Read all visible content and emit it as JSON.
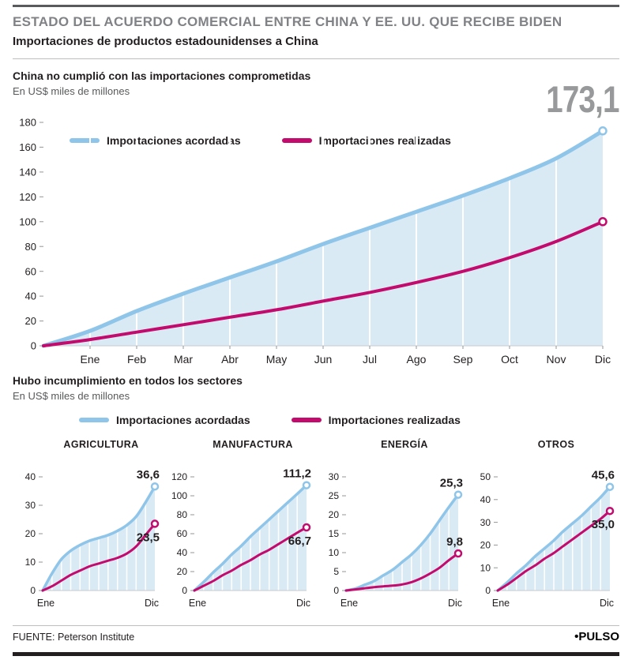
{
  "header": {
    "kicker": "ESTADO DEL ACUERDO COMERCIAL ENTRE CHINA Y EE. UU. QUE RECIBE BIDEN",
    "title": "Importaciones de productos estadounidenses a China"
  },
  "section1": {
    "title": "China no cumplió con las importaciones comprometidas",
    "subtitle": "En US$ miles de millones",
    "big_value_agreed": "173,1",
    "big_value_realized": "100"
  },
  "section2": {
    "title": "Hubo incumplimiento en todos los sectores",
    "subtitle": "En US$ miles de millones"
  },
  "legend": {
    "agreed": "Importaciones acordadas",
    "realized": "Importaciones realizadas"
  },
  "footer": {
    "source": "FUENTE: Peterson Institute",
    "brand": "•PULSO"
  },
  "colors": {
    "agreed_line": "#8FC5E9",
    "realized_line": "#C30B6E",
    "area_fill": "#D9EAF5",
    "big_number": "#97999B",
    "kicker": "#808285",
    "text_dark": "#221E1F"
  },
  "chart_data": [
    {
      "type": "line",
      "title": "China no cumplió con las importaciones comprometidas",
      "unit": "En US$ miles de millones",
      "x_labels": [
        "Ene",
        "Feb",
        "Mar",
        "Abr",
        "May",
        "Jun",
        "Jul",
        "Ago",
        "Sep",
        "Oct",
        "Nov",
        "Dic"
      ],
      "ylim": [
        0,
        180
      ],
      "yticks": [
        0,
        20,
        40,
        60,
        80,
        100,
        120,
        140,
        160,
        180
      ],
      "grid": true,
      "legend_position": "top-left",
      "series": [
        {
          "name": "Importaciones acordadas",
          "color_key": "agreed_line",
          "end_label": "173,1",
          "values": [
            0,
            12,
            28,
            42,
            55,
            68,
            82,
            95,
            108,
            121,
            135,
            151,
            173.1
          ]
        },
        {
          "name": "Importaciones realizadas",
          "color_key": "realized_line",
          "end_label": "100",
          "values": [
            0,
            5,
            11,
            17,
            23,
            29,
            36,
            43,
            51,
            60,
            71,
            84,
            100
          ]
        }
      ]
    },
    {
      "type": "line",
      "title": "AGRICULTURA",
      "x_labels": [
        "Ene",
        "Dic"
      ],
      "ylim": [
        0,
        40
      ],
      "yticks": [
        0,
        10,
        20,
        30,
        40
      ],
      "series": [
        {
          "name": "Importaciones acordadas",
          "color_key": "agreed_line",
          "end_label": "36,6",
          "label_side": "above",
          "values": [
            0,
            6,
            11,
            14,
            16,
            17.5,
            18.5,
            19.5,
            21,
            23,
            26,
            31,
            36.6
          ]
        },
        {
          "name": "Importaciones realizadas",
          "color_key": "realized_line",
          "end_label": "23,5",
          "label_side": "below",
          "values": [
            0,
            1.5,
            3.5,
            5.5,
            7,
            8.5,
            9.5,
            10.5,
            11.5,
            13,
            15.5,
            19.5,
            23.5
          ]
        }
      ]
    },
    {
      "type": "line",
      "title": "MANUFACTURA",
      "x_labels": [
        "Ene",
        "Dic"
      ],
      "ylim": [
        0,
        120
      ],
      "yticks": [
        0,
        20,
        40,
        60,
        80,
        100,
        120
      ],
      "series": [
        {
          "name": "Importaciones acordadas",
          "color_key": "agreed_line",
          "end_label": "111,2",
          "label_side": "above",
          "values": [
            0,
            9,
            19,
            28,
            38,
            47,
            57,
            66,
            75,
            84,
            93,
            102,
            111.2
          ]
        },
        {
          "name": "Importaciones realizadas",
          "color_key": "realized_line",
          "end_label": "66,7",
          "label_side": "below",
          "values": [
            0,
            5,
            10,
            16,
            21,
            27,
            32,
            38,
            43,
            49,
            55,
            61,
            66.7
          ]
        }
      ]
    },
    {
      "type": "line",
      "title": "ENERGÍA",
      "x_labels": [
        "Ene",
        "Dic"
      ],
      "ylim": [
        0,
        30
      ],
      "yticks": [
        0,
        5,
        10,
        15,
        20,
        25,
        30
      ],
      "series": [
        {
          "name": "Importaciones acordadas",
          "color_key": "agreed_line",
          "end_label": "25,3",
          "label_side": "above",
          "values": [
            0,
            0.5,
            1.5,
            2.5,
            4,
            5.5,
            7.5,
            9.5,
            12,
            15,
            18.5,
            22,
            25.3
          ]
        },
        {
          "name": "Importaciones realizadas",
          "color_key": "realized_line",
          "end_label": "9,8",
          "label_side": "above",
          "values": [
            0,
            0.3,
            0.6,
            0.9,
            1.1,
            1.3,
            1.6,
            2.2,
            3.2,
            4.5,
            6,
            8,
            9.8
          ]
        }
      ]
    },
    {
      "type": "line",
      "title": "OTROS",
      "x_labels": [
        "Ene",
        "Dic"
      ],
      "ylim": [
        0,
        50
      ],
      "yticks": [
        0,
        10,
        20,
        30,
        40,
        50
      ],
      "series": [
        {
          "name": "Importaciones acordadas",
          "color_key": "agreed_line",
          "end_label": "45,6",
          "label_side": "above",
          "values": [
            0,
            3.5,
            7.5,
            11,
            15,
            18.5,
            22,
            26,
            29.5,
            33,
            37,
            41,
            45.6
          ]
        },
        {
          "name": "Importaciones realizadas",
          "color_key": "realized_line",
          "end_label": "35,0",
          "label_side": "below",
          "values": [
            0,
            2.5,
            5.5,
            8.5,
            11,
            14,
            16.5,
            19.5,
            22.5,
            25.5,
            28.5,
            31.5,
            35
          ]
        }
      ]
    }
  ]
}
